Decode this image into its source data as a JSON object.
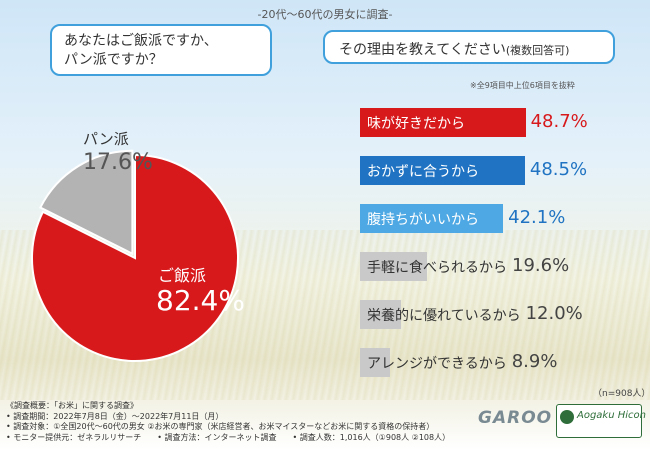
{
  "survey_label": "-20代～60代の男女に調査-",
  "question1": {
    "line1": "あなたはご飯派ですか、",
    "line2": "パン派ですか？"
  },
  "question2": {
    "main": "その理由を教えてください",
    "sub": "(複数回答可)"
  },
  "note_top": "※全9項目中上位6項目を抜粋",
  "n_note": "（n=908人）",
  "colors": {
    "rice": "#d7191c",
    "bread": "#b3b3b3",
    "red_bar": "#d7191c",
    "blue_bar": "#1f73c2",
    "light_blue_bar": "#4ea8e3",
    "gray_bar": "#c9c9c9"
  },
  "chart_data": [
    {
      "type": "pie",
      "slices": [
        {
          "label": "ご飯派",
          "value": 82.4,
          "display": "82.4%"
        },
        {
          "label": "パン派",
          "value": 17.6,
          "display": "17.6%"
        }
      ]
    },
    {
      "type": "bar",
      "orientation": "horizontal",
      "unit": "%",
      "categories": [
        "味が好きだから",
        "おかずに合うから",
        "腹持ちがいいから",
        "手軽に食べられるから",
        "栄養的に優れているから",
        "アレンジができるから"
      ],
      "values": [
        48.7,
        48.5,
        42.1,
        19.6,
        12.0,
        8.9
      ],
      "display": [
        "48.7%",
        "48.5%",
        "42.1%",
        "19.6%",
        "12.0%",
        "8.9%"
      ]
    }
  ],
  "footer": {
    "line1": "《調査概要：「お米」に関する調査》",
    "line2": "• 調査期間：2022年7月8日（金）～2022年7月11日（月）",
    "line3": "• 調査対象：①全国20代～60代の男女 ②お米の専門家（米店経営者、お米マイスターなどお米に関する資格の保持者）",
    "line4": "• モニター提供元：ゼネラルリサーチ　　• 調査方法：インターネット調査　　• 調査人数：1,016人（①908人 ②108人）"
  },
  "logos": {
    "garoo": "GAROO",
    "aogaku": "Aogaku Hicon"
  }
}
